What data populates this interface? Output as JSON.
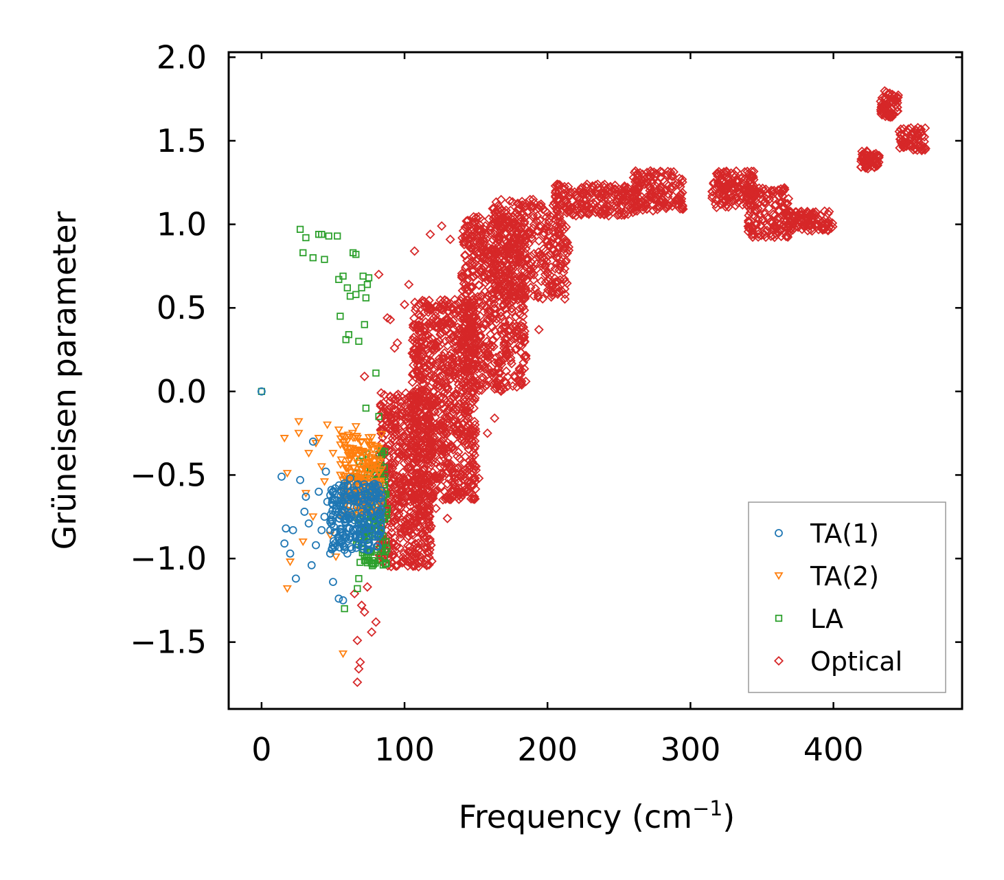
{
  "chart_data": {
    "type": "scatter",
    "title": "",
    "xlabel": "Frequency (cm",
    "xlabel_sup": "−1",
    "xlabel_close": ")",
    "ylabel": "Grüneisen parameter",
    "xlim": [
      -23,
      490
    ],
    "ylim": [
      -1.9,
      2.03
    ],
    "xticks": [
      0,
      100,
      200,
      300,
      400
    ],
    "xtick_labels": [
      "0",
      "100",
      "200",
      "300",
      "400"
    ],
    "yticks": [
      -1.5,
      -1.0,
      -0.5,
      0.0,
      0.5,
      1.0,
      1.5,
      2.0
    ],
    "ytick_labels": [
      "−1.5",
      "−1.0",
      "−0.5",
      "0.0",
      "0.5",
      "1.0",
      "1.5",
      "2.0"
    ],
    "legend_position": "lower-right",
    "series": [
      {
        "name": "TA(1)",
        "marker": "circle",
        "color": "#1f77b4",
        "points": [
          [
            0,
            0.0
          ],
          [
            14,
            -0.51
          ],
          [
            17,
            -0.82
          ],
          [
            20,
            -0.97
          ],
          [
            16,
            -0.91
          ],
          [
            22,
            -0.83
          ],
          [
            27,
            -0.53
          ],
          [
            30,
            -0.72
          ],
          [
            35,
            -1.04
          ],
          [
            33,
            -0.79
          ],
          [
            38,
            -0.92
          ],
          [
            36,
            -0.3
          ],
          [
            42,
            -0.83
          ],
          [
            45,
            -0.48
          ],
          [
            48,
            -0.97
          ],
          [
            50,
            -1.14
          ],
          [
            54,
            -1.24
          ],
          [
            57,
            -1.25
          ],
          [
            60,
            -0.97
          ],
          [
            63,
            -0.74
          ],
          [
            66,
            -0.86
          ],
          [
            70,
            -0.72
          ],
          [
            72,
            -0.6
          ],
          [
            75,
            -0.78
          ],
          [
            78,
            -0.66
          ],
          [
            80,
            -0.79
          ],
          [
            58,
            -0.55
          ],
          [
            52,
            -0.7
          ],
          [
            46,
            -0.66
          ],
          [
            40,
            -0.6
          ],
          [
            44,
            -0.75
          ],
          [
            55,
            -0.84
          ],
          [
            62,
            -0.52
          ],
          [
            68,
            -0.92
          ],
          [
            24,
            -1.12
          ],
          [
            31,
            -0.63
          ]
        ],
        "clusters": [
          {
            "x": [
              48,
              84
            ],
            "y": [
              -0.95,
              -0.55
            ],
            "count": 230
          }
        ]
      },
      {
        "name": "TA(2)",
        "marker": "triangle-down",
        "color": "#ff7f0e",
        "points": [
          [
            16,
            -0.28
          ],
          [
            18,
            -0.49
          ],
          [
            20,
            -1.02
          ],
          [
            18,
            -1.18
          ],
          [
            26,
            -0.18
          ],
          [
            26,
            -0.25
          ],
          [
            31,
            -0.61
          ],
          [
            33,
            -0.37
          ],
          [
            38,
            -0.31
          ],
          [
            42,
            -0.45
          ],
          [
            46,
            -0.2
          ],
          [
            50,
            -0.37
          ],
          [
            54,
            -0.23
          ],
          [
            58,
            -0.32
          ],
          [
            62,
            -0.41
          ],
          [
            66,
            -0.21
          ],
          [
            70,
            -0.3
          ],
          [
            74,
            -0.47
          ],
          [
            78,
            -0.38
          ],
          [
            82,
            -0.63
          ],
          [
            57,
            -1.57
          ],
          [
            40,
            -0.28
          ],
          [
            36,
            -0.75
          ],
          [
            44,
            -0.54
          ],
          [
            48,
            -0.86
          ],
          [
            52,
            -0.99
          ],
          [
            29,
            -0.9
          ]
        ],
        "clusters": [
          {
            "x": [
              55,
              84
            ],
            "y": [
              -0.75,
              -0.25
            ],
            "count": 190
          }
        ]
      },
      {
        "name": "LA",
        "marker": "square",
        "color": "#2ca02c",
        "points": [
          [
            0,
            0.0
          ],
          [
            27,
            0.97
          ],
          [
            29,
            0.83
          ],
          [
            31,
            0.92
          ],
          [
            36,
            0.8
          ],
          [
            40,
            0.94
          ],
          [
            42,
            0.94
          ],
          [
            44,
            0.79
          ],
          [
            47,
            0.93
          ],
          [
            53,
            0.93
          ],
          [
            54,
            0.67
          ],
          [
            55,
            0.45
          ],
          [
            57,
            0.69
          ],
          [
            59,
            0.31
          ],
          [
            60,
            0.62
          ],
          [
            61,
            0.34
          ],
          [
            62,
            0.57
          ],
          [
            64,
            0.83
          ],
          [
            66,
            0.82
          ],
          [
            66,
            0.58
          ],
          [
            68,
            0.3
          ],
          [
            70,
            0.62
          ],
          [
            71,
            0.69
          ],
          [
            72,
            0.4
          ],
          [
            73,
            0.56
          ],
          [
            74,
            0.64
          ],
          [
            75,
            0.68
          ],
          [
            80,
            0.11
          ],
          [
            82,
            -0.15
          ],
          [
            73,
            -0.1
          ],
          [
            68,
            -1.12
          ],
          [
            67,
            -1.18
          ],
          [
            58,
            -1.3
          ],
          [
            86,
            -0.56
          ]
        ],
        "clusters": [
          {
            "x": [
              66,
              88
            ],
            "y": [
              -1.05,
              -0.35
            ],
            "count": 140
          }
        ]
      },
      {
        "name": "Optical",
        "marker": "diamond",
        "color": "#d62728",
        "points": [
          [
            67,
            -1.74
          ],
          [
            68,
            -1.66
          ],
          [
            69,
            -1.62
          ],
          [
            67,
            -1.49
          ],
          [
            72,
            -1.32
          ],
          [
            74,
            -1.17
          ],
          [
            80,
            -1.38
          ],
          [
            77,
            -1.44
          ],
          [
            82,
            0.7
          ],
          [
            88,
            0.44
          ],
          [
            90,
            0.43
          ],
          [
            93,
            0.26
          ],
          [
            95,
            0.29
          ],
          [
            103,
            0.64
          ],
          [
            107,
            0.84
          ],
          [
            118,
            0.94
          ],
          [
            126,
            0.99
          ],
          [
            132,
            0.91
          ],
          [
            142,
            0.93
          ],
          [
            106,
            -0.86
          ],
          [
            112,
            -0.69
          ],
          [
            122,
            -0.7
          ],
          [
            130,
            -0.76
          ],
          [
            135,
            -0.62
          ],
          [
            148,
            -0.52
          ],
          [
            152,
            -0.52
          ],
          [
            158,
            -0.25
          ],
          [
            163,
            -0.16
          ],
          [
            172,
            0.03
          ],
          [
            184,
            0.3
          ],
          [
            194,
            0.37
          ],
          [
            100,
            0.52
          ],
          [
            96,
            -0.33
          ],
          [
            72,
            0.09
          ],
          [
            70,
            -1.28
          ],
          [
            65,
            -1.21
          ]
        ],
        "clusters": [
          {
            "x": [
              82,
              120
            ],
            "y": [
              -1.05,
              0.0
            ],
            "count": 620
          },
          {
            "x": [
              105,
              150
            ],
            "y": [
              -0.65,
              0.55
            ],
            "count": 820
          },
          {
            "x": [
              140,
              185
            ],
            "y": [
              0.0,
              1.05
            ],
            "count": 620
          },
          {
            "x": [
              160,
              215
            ],
            "y": [
              0.55,
              1.15
            ],
            "count": 380
          },
          {
            "x": [
              205,
              262
            ],
            "y": [
              1.05,
              1.24
            ],
            "count": 200
          },
          {
            "x": [
              260,
              295
            ],
            "y": [
              1.08,
              1.32
            ],
            "count": 160
          },
          {
            "x": [
              315,
              345
            ],
            "y": [
              1.1,
              1.32
            ],
            "count": 150
          },
          {
            "x": [
              340,
              370
            ],
            "y": [
              0.92,
              1.22
            ],
            "count": 150
          },
          {
            "x": [
              365,
              400
            ],
            "y": [
              0.96,
              1.08
            ],
            "count": 110
          },
          {
            "x": [
              419,
              432
            ],
            "y": [
              1.33,
              1.44
            ],
            "count": 60
          },
          {
            "x": [
              433,
              446
            ],
            "y": [
              1.64,
              1.8
            ],
            "count": 70
          },
          {
            "x": [
              446,
              465
            ],
            "y": [
              1.44,
              1.58
            ],
            "count": 70
          }
        ]
      }
    ]
  }
}
